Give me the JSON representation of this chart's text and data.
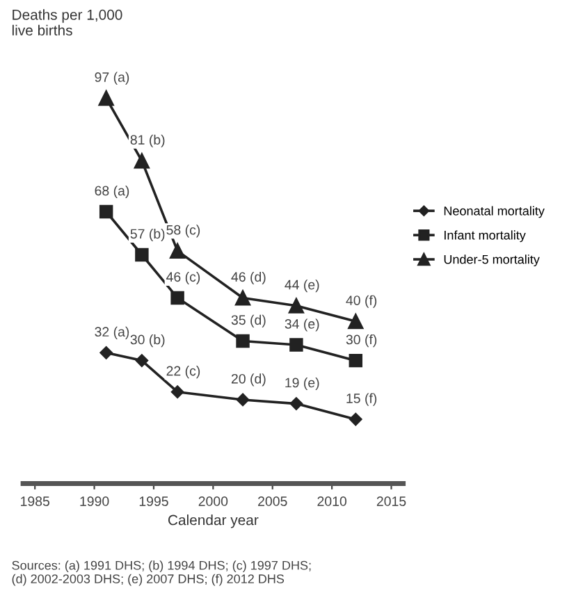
{
  "chart_data": {
    "type": "line",
    "xlabel": "Calendar year",
    "x": [
      1991,
      1994,
      1997,
      2002.5,
      2007,
      2012
    ],
    "xlim": [
      1984,
      2016
    ],
    "xticks": [
      1985,
      1990,
      1995,
      2000,
      2005,
      2010,
      2015
    ],
    "tick_labels": "x",
    "grid": false,
    "legend": "right",
    "line_style": "solid",
    "series": [
      {
        "name": "Neonatal mortality",
        "color": "#222222",
        "marker": "diamond",
        "values": [
          32,
          30,
          22,
          20,
          19,
          15
        ],
        "value_labels": [
          "32 (a)",
          "30 (b)",
          "22 (c)",
          "20 (d)",
          "19 (e)",
          "15 (f)"
        ]
      },
      {
        "name": "Infant mortality",
        "color": "#222222",
        "marker": "square",
        "values": [
          68,
          57,
          46,
          35,
          34,
          30
        ],
        "value_labels": [
          "68 (a)",
          "57 (b)",
          "46 (c)",
          "35 (d)",
          "34 (e)",
          "30 (f)"
        ]
      },
      {
        "name": "Under-5 mortality",
        "color": "#222222",
        "marker": "triangle",
        "values": [
          97,
          81,
          58,
          46,
          44,
          40
        ],
        "value_labels": [
          "97 (a)",
          "81 (b)",
          "58 (c)",
          "46 (d)",
          "44 (e)",
          "40 (f)"
        ]
      }
    ],
    "annotations": [
      "Deaths per 1,000\nlive births",
      "Sources: (a) 1991 DHS; (b) 1994 DHS; (c) 1997 DHS;\n(d) 2002-2003 DHS; (e) 2007 DHS; (f) 2012 DHS"
    ]
  }
}
